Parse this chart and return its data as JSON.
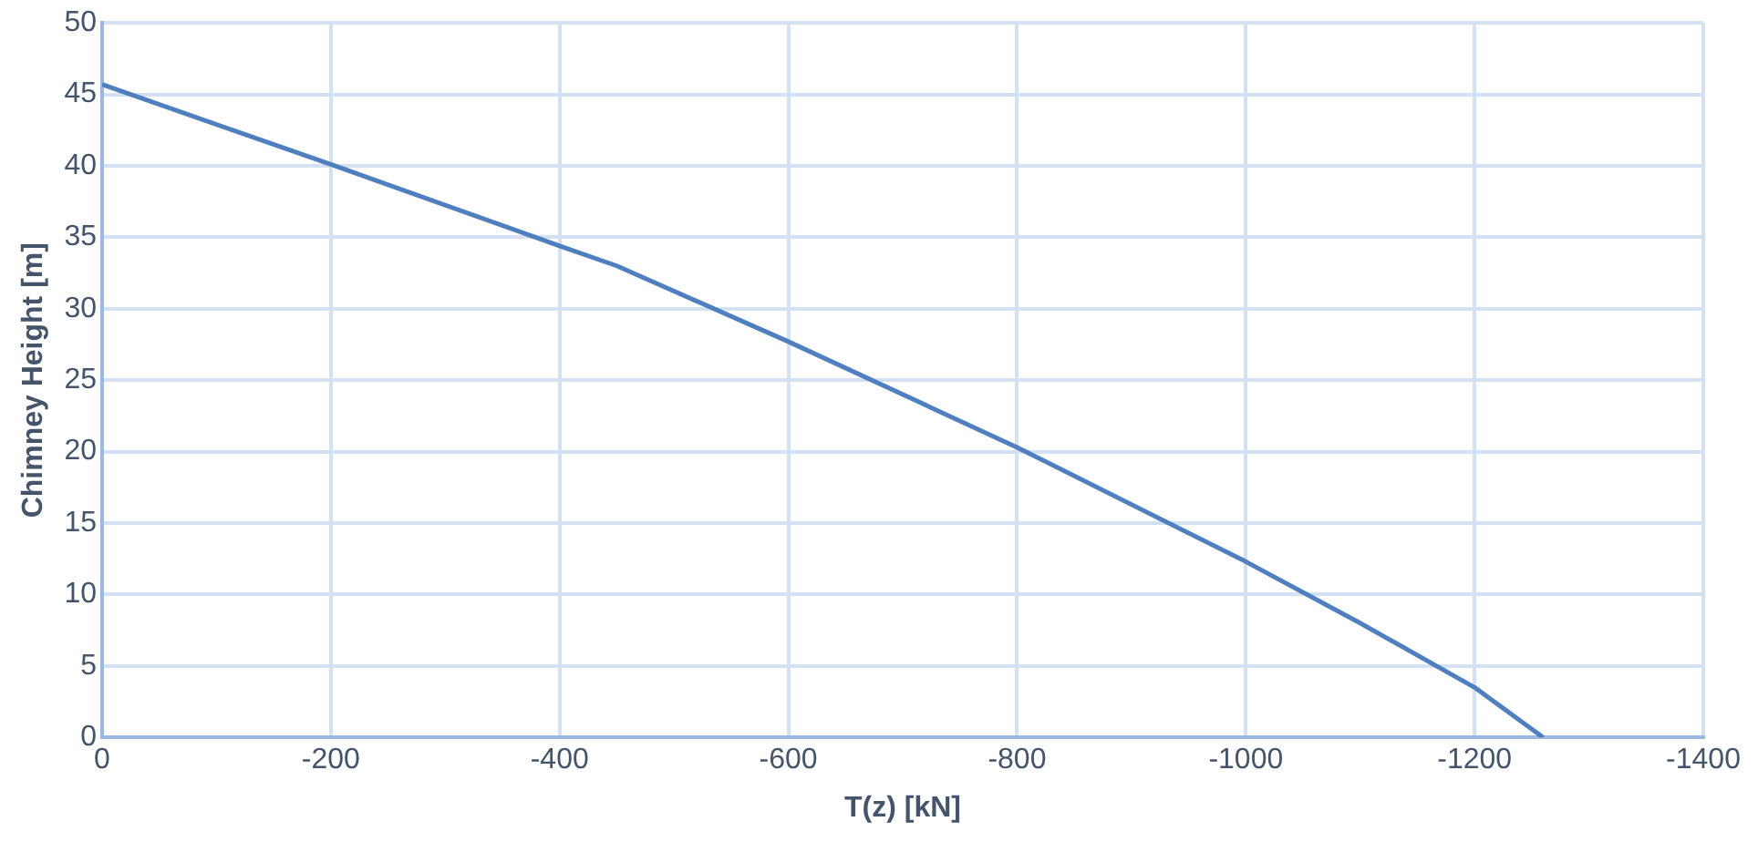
{
  "chart_data": {
    "type": "line",
    "xlabel": "T(z) [kN]",
    "ylabel": "Chimney Height [m]",
    "x": [
      0,
      -200,
      -400,
      -450,
      -600,
      -800,
      -1000,
      -1100,
      -1200,
      -1260
    ],
    "series": [
      {
        "color": "#4f7fbf",
        "values": [
          45.7,
          40.1,
          34.4,
          33,
          27.7,
          20.3,
          12.3,
          8,
          3.5,
          0
        ]
      }
    ],
    "xlim": [
      0,
      -1400
    ],
    "xticks": [
      0,
      -200,
      -400,
      -600,
      -800,
      -1000,
      -1200,
      -1400
    ],
    "ylim": [
      0,
      50
    ],
    "yticks": [
      0,
      5,
      10,
      15,
      20,
      25,
      30,
      35,
      40,
      45,
      50
    ],
    "grid": true,
    "legend": false,
    "marker": "none",
    "line_style": "solid"
  }
}
